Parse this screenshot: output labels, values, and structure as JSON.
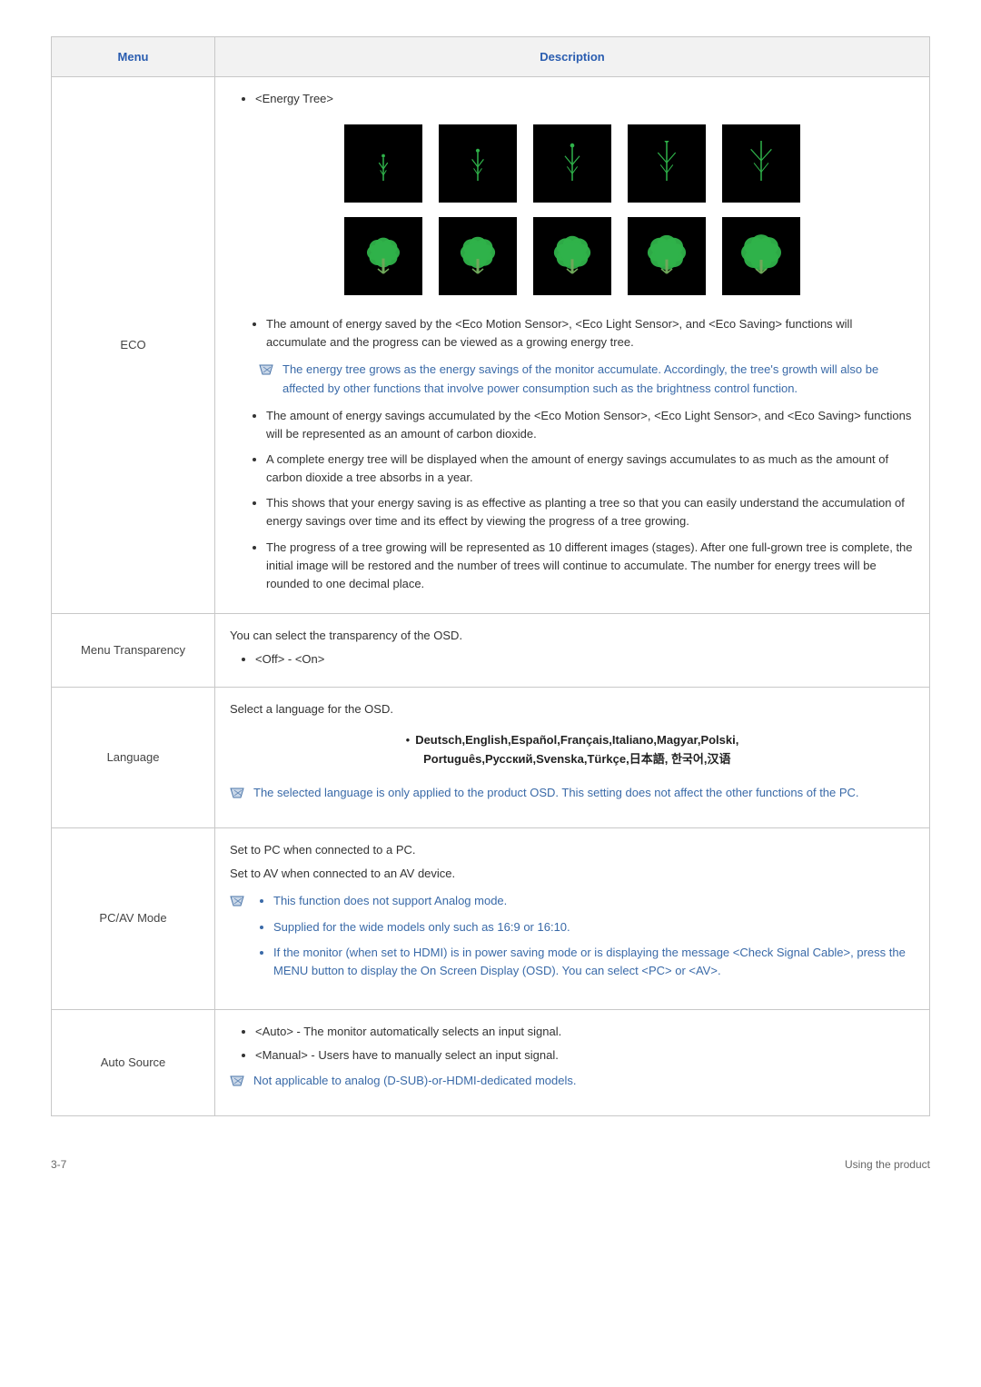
{
  "table": {
    "headers": {
      "menu": "Menu",
      "description": "Description"
    },
    "rows": {
      "eco": {
        "menu": "ECO",
        "top_item": "<Energy Tree>",
        "sub_items": [
          "The amount of energy saved by the <Eco Motion Sensor>, <Eco Light Sensor>, and <Eco Saving> functions will accumulate and the progress can be viewed as a growing energy tree."
        ],
        "note": "The energy tree grows as the energy savings of the monitor accumulate. Accordingly, the tree's growth will also be affected by other functions that involve power consumption such as the brightness control function.",
        "sub_items2": [
          "The amount of energy savings accumulated by the <Eco Motion Sensor>, <Eco Light Sensor>, and <Eco Saving> functions will be represented as an amount of carbon dioxide.",
          "A complete energy tree will be displayed when the amount of energy savings accumulates to as much as the amount of carbon dioxide a tree absorbs in a year.",
          "This shows that your energy saving is as effective as planting a tree so that you can easily understand the accumulation of energy savings over time and its effect by viewing the progress of a tree growing.",
          "The progress of a tree growing will be represented as 10 different images (stages). After one full-grown tree is complete, the initial image will be restored and the number of trees will continue to accumulate. The number for energy trees will be rounded to one decimal place."
        ],
        "tree_images": {
          "tile_bg": "#000000",
          "leaf_color": "#2fb24a",
          "trunk_color": "#6fa85a",
          "row1_sizes": [
            0.25,
            0.4,
            0.55,
            0.7,
            0.85
          ],
          "row2_sizes": [
            0.7,
            0.78,
            0.86,
            0.93,
            1.0
          ]
        }
      },
      "menu_transparency": {
        "menu": "Menu Transparency",
        "intro": "You can select the transparency of the OSD.",
        "opts": "<Off> - <On>"
      },
      "language": {
        "menu": "Language",
        "intro": "Select a language for the OSD.",
        "langs_line1": "Deutsch,English,Español,Français,Italiano,Magyar,Polski,",
        "langs_line2": "Português,Русский,Svenska,Türkçe,日本語, 한국어,汉语",
        "note": "The selected language is only applied to the product OSD. This setting does not affect the other functions of the PC."
      },
      "pcav": {
        "menu": "PC/AV Mode",
        "line1": "Set to PC when connected to a PC.",
        "line2": "Set to AV when connected to an AV device.",
        "note_items": [
          "This function does not support Analog mode.",
          "Supplied for the wide models only such as 16:9 or 16:10.",
          "If the monitor (when set to HDMI) is in power saving mode or is displaying the message <Check Signal Cable>, press the MENU button to display the On Screen Display (OSD). You can select <PC> or <AV>."
        ]
      },
      "auto_source": {
        "menu": "Auto Source",
        "items": [
          "<Auto> - The monitor automatically selects an input signal.",
          "<Manual> - Users have to manually select an input signal."
        ],
        "note": "Not applicable to analog (D-SUB)-or-HDMI-dedicated models."
      }
    }
  },
  "footer": {
    "left": "3-7",
    "right": "Using the product"
  },
  "colors": {
    "header_text": "#2a5db0",
    "note_text": "#3a6aa8",
    "border": "#c8c8c8",
    "note_icon_fill": "#c9d7e8",
    "note_icon_stroke": "#4a74a8"
  }
}
